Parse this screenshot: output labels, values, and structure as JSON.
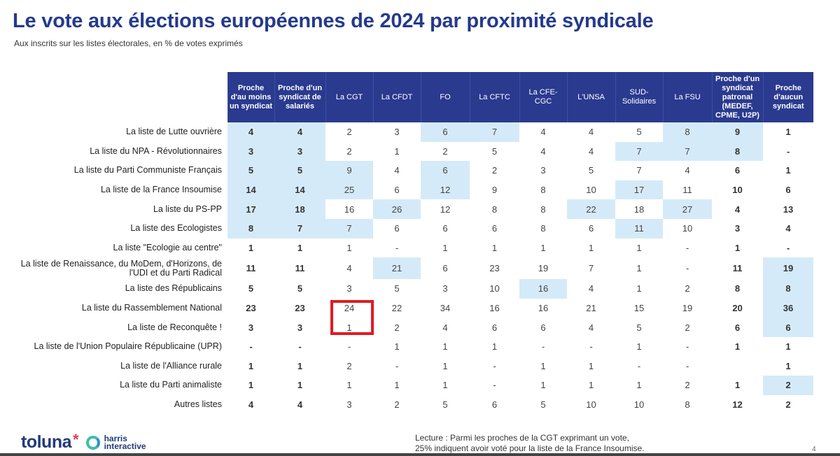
{
  "title": "Le vote aux élections européennes de 2024 par proximité syndicale",
  "subtitle": "Aux inscrits sur les listes électorales, en % de votes exprimés",
  "chart_data": {
    "type": "table",
    "columns": [
      "Proche d'au moins un syndicat",
      "Proche d'un syndicat de salariés",
      "La CGT",
      "La CFDT",
      "FO",
      "La CFTC",
      "La CFE-CGC",
      "L'UNSA",
      "SUD-Solidaires",
      "La FSU",
      "Proche d'un syndicat patronal (MEDEF, CPME, U2P)",
      "Proche d'aucun syndicat"
    ],
    "bold_columns": [
      0,
      1,
      10,
      11
    ],
    "rows": [
      {
        "label": "La liste de Lutte ouvrière",
        "values": [
          "4",
          "4",
          "2",
          "3",
          "6",
          "7",
          "4",
          "4",
          "5",
          "8",
          "9",
          "1"
        ],
        "highlight": [
          0,
          1,
          4,
          5,
          9,
          10
        ]
      },
      {
        "label": "La liste du NPA - Révolutionnaires",
        "values": [
          "3",
          "3",
          "2",
          "1",
          "2",
          "5",
          "4",
          "4",
          "7",
          "7",
          "8",
          "-"
        ],
        "highlight": [
          0,
          1,
          8,
          9,
          10
        ]
      },
      {
        "label": "La liste du Parti Communiste Français",
        "values": [
          "5",
          "5",
          "9",
          "4",
          "6",
          "2",
          "3",
          "5",
          "7",
          "4",
          "6",
          "1"
        ],
        "highlight": [
          0,
          1,
          2,
          4
        ]
      },
      {
        "label": "La liste de la France Insoumise",
        "values": [
          "14",
          "14",
          "25",
          "6",
          "12",
          "9",
          "8",
          "10",
          "17",
          "11",
          "10",
          "6"
        ],
        "highlight": [
          0,
          1,
          2,
          4,
          8
        ]
      },
      {
        "label": "La liste du PS-PP",
        "values": [
          "17",
          "18",
          "16",
          "26",
          "12",
          "8",
          "8",
          "22",
          "18",
          "27",
          "4",
          "13"
        ],
        "highlight": [
          0,
          1,
          3,
          7,
          9
        ]
      },
      {
        "label": "La liste des Ecologistes",
        "values": [
          "8",
          "7",
          "7",
          "6",
          "6",
          "6",
          "8",
          "6",
          "11",
          "10",
          "3",
          "4"
        ],
        "highlight": [
          0,
          1,
          2,
          8
        ]
      },
      {
        "label": "La liste \"Ecologie au centre\"",
        "values": [
          "1",
          "1",
          "1",
          "-",
          "1",
          "1",
          "1",
          "1",
          "1",
          "-",
          "1",
          "-"
        ],
        "highlight": []
      },
      {
        "label": "La liste de Renaissance, du MoDem, d'Horizons, de l'UDI et du Parti Radical",
        "values": [
          "11",
          "11",
          "4",
          "21",
          "6",
          "23",
          "19",
          "7",
          "1",
          "-",
          "11",
          "19"
        ],
        "highlight": [
          3,
          11
        ]
      },
      {
        "label": "La liste des Républicains",
        "values": [
          "5",
          "5",
          "3",
          "5",
          "3",
          "10",
          "16",
          "4",
          "1",
          "2",
          "8",
          "8"
        ],
        "highlight": [
          6,
          11
        ]
      },
      {
        "label": "La liste du Rassemblement National",
        "values": [
          "23",
          "23",
          "24",
          "22",
          "34",
          "16",
          "16",
          "21",
          "15",
          "19",
          "20",
          "36"
        ],
        "highlight": [
          11
        ]
      },
      {
        "label": "La liste de Reconquête !",
        "values": [
          "3",
          "3",
          "1",
          "2",
          "4",
          "6",
          "6",
          "4",
          "5",
          "2",
          "6",
          "6"
        ],
        "highlight": [
          11
        ]
      },
      {
        "label": "La liste de l'Union Populaire Républicaine (UPR)",
        "values": [
          "-",
          "-",
          "-",
          "1",
          "1",
          "1",
          "-",
          "-",
          "1",
          "-",
          "1",
          "1"
        ],
        "highlight": []
      },
      {
        "label": "La liste  de l'Alliance rurale",
        "values": [
          "1",
          "1",
          "2",
          "-",
          "1",
          "-",
          "1",
          "1",
          "-",
          "-",
          "",
          "1"
        ],
        "highlight": []
      },
      {
        "label": "La liste du Parti animaliste",
        "values": [
          "1",
          "1",
          "1",
          "1",
          "1",
          "-",
          "1",
          "1",
          "1",
          "2",
          "1",
          "2"
        ],
        "highlight": [
          11
        ]
      },
      {
        "label": "Autres listes",
        "values": [
          "4",
          "4",
          "3",
          "2",
          "5",
          "6",
          "5",
          "10",
          "10",
          "8",
          "12",
          "2"
        ],
        "highlight": []
      }
    ],
    "annotation": "Red box around La CGT values for Rassemblement National and Reconquête"
  },
  "footer": {
    "logo_toluna": "toluna",
    "logo_harris_1": "harris",
    "logo_harris_2": "interactive",
    "lecture_1": "Lecture : Parmi les proches de la CGT exprimant un vote,",
    "lecture_2": "25% indiquent avoir voté pour la liste de la France Insoumise.",
    "page": "4"
  },
  "colors": {
    "header": "#2a3a8f",
    "highlight": "#d5eaf8",
    "title": "#243a8c",
    "annotation": "#e11b22"
  }
}
